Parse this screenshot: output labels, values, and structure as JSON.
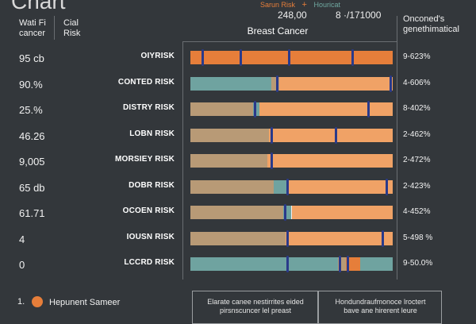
{
  "title": "Chart",
  "legend_top": {
    "risk_a": "Sarun Risk",
    "plus": "+",
    "risk_b": "Houricat"
  },
  "totals": {
    "a": "248,00",
    "b": "8 ·/171000"
  },
  "col_headers": {
    "value": "Wati Fi cancer",
    "risk": "Cial Risk",
    "pct": "Onconed's genethimatical"
  },
  "chart_data": {
    "type": "bar",
    "title": "Breast Cancer",
    "xlabel": "",
    "ylabel": "",
    "xlim": [
      0,
      100
    ],
    "colors": {
      "orange": "#e67e3a",
      "light_orange": "#f0a266",
      "teal": "#6fa3a0",
      "tan": "#b89a76",
      "marker_blue": "#2a3a8a"
    },
    "rows": [
      {
        "value": "95 cb",
        "label": "OIYRISK",
        "pct": "9-623%",
        "segments": [
          [
            "orange",
            0,
            100
          ]
        ],
        "markers": [
          6,
          25,
          49,
          80
        ]
      },
      {
        "value": "90.%",
        "label": "CONTED RISK",
        "pct": "4-606%",
        "segments": [
          [
            "teal",
            0,
            40
          ],
          [
            "tan",
            40,
            44
          ],
          [
            "light_orange",
            44,
            100
          ]
        ],
        "markers": [
          43,
          99
        ]
      },
      {
        "value": "25.%",
        "label": "DISTRY RISK",
        "pct": "8-402%",
        "segments": [
          [
            "tan",
            0,
            31
          ],
          [
            "teal",
            31,
            34
          ],
          [
            "light_orange",
            34,
            100
          ]
        ],
        "markers": [
          32,
          88
        ]
      },
      {
        "value": "46.26",
        "label": "LOBN RISK",
        "pct": "2-462%",
        "segments": [
          [
            "tan",
            0,
            39
          ],
          [
            "light_orange",
            39,
            100
          ]
        ],
        "markers": [
          40,
          72
        ]
      },
      {
        "value": "9,005",
        "label": "MORSIEY RISK",
        "pct": "2-472%",
        "segments": [
          [
            "tan",
            0,
            38
          ],
          [
            "light_orange",
            38,
            100
          ]
        ],
        "markers": [
          40
        ]
      },
      {
        "value": "65 db",
        "label": "DOBR RISK",
        "pct": "2-423%",
        "segments": [
          [
            "tan",
            0,
            41
          ],
          [
            "teal",
            41,
            48
          ],
          [
            "light_orange",
            48,
            100
          ]
        ],
        "markers": [
          48,
          97
        ]
      },
      {
        "value": "61.71",
        "label": "OCOEN RISK",
        "pct": "4-452%",
        "segments": [
          [
            "tan",
            0,
            46
          ],
          [
            "teal",
            46,
            50
          ],
          [
            "light_orange",
            50,
            100
          ]
        ],
        "markers": [
          47
        ]
      },
      {
        "value": "4",
        "label": "IOUSN RISK",
        "pct": "5-498 %",
        "segments": [
          [
            "tan",
            0,
            47
          ],
          [
            "light_orange",
            47,
            100
          ]
        ],
        "markers": [
          48,
          95
        ]
      },
      {
        "value": "0",
        "label": "LCCRD RISK",
        "pct": "9-50.0%",
        "segments": [
          [
            "teal",
            0,
            73
          ],
          [
            "tan",
            73,
            77
          ],
          [
            "orange",
            77,
            84
          ],
          [
            "teal",
            84,
            100
          ]
        ],
        "markers": [
          48,
          74,
          78
        ]
      }
    ]
  },
  "footer": {
    "index": "1.",
    "legend_label": "Hepunent Sameer",
    "note_left": "Elarate canee nestirrites eided pirsnscuncer lel preast",
    "note_right": "Hondundraufmonoce lroctert bave ane hirerent leure"
  }
}
